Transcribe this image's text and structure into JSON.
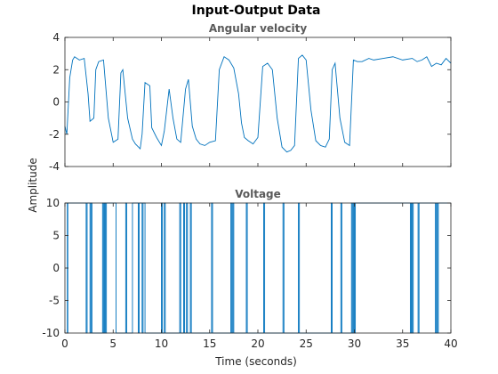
{
  "figure_title": "Input-Output Data",
  "ylabel": "Amplitude",
  "xlabel": "Time (seconds)",
  "chart_data": [
    {
      "type": "line",
      "title": "Angular velocity",
      "color": "#0072bd",
      "xlim": [
        0,
        40
      ],
      "ylim": [
        -4,
        4
      ],
      "xticks": [
        0,
        5,
        10,
        15,
        20,
        25,
        30,
        35,
        40
      ],
      "yticks": [
        -4,
        -2,
        0,
        2,
        4
      ],
      "x": [
        0.0,
        0.2,
        0.5,
        0.8,
        1.0,
        1.5,
        2.0,
        2.4,
        2.6,
        3.0,
        3.2,
        3.5,
        4.0,
        4.5,
        5.0,
        5.5,
        5.8,
        6.0,
        6.5,
        7.0,
        7.3,
        7.8,
        8.0,
        8.3,
        8.8,
        9.0,
        9.5,
        10.0,
        10.3,
        10.8,
        11.2,
        11.6,
        12.0,
        12.5,
        12.8,
        13.2,
        13.6,
        14.0,
        14.5,
        15.0,
        15.6,
        16.0,
        16.5,
        17.0,
        17.5,
        18.0,
        18.3,
        18.6,
        19.0,
        19.5,
        20.0,
        20.5,
        21.0,
        21.5,
        22.0,
        22.5,
        23.0,
        23.4,
        23.8,
        24.2,
        24.6,
        25.0,
        25.5,
        26.0,
        26.5,
        27.0,
        27.4,
        27.7,
        28.0,
        28.5,
        29.0,
        29.5,
        29.9,
        30.3,
        30.8,
        31.5,
        32.0,
        33.0,
        34.0,
        35.0,
        36.0,
        36.5,
        37.0,
        37.5,
        38.0,
        38.5,
        39.0,
        39.5,
        40.0
      ],
      "y": [
        -1.5,
        -2.0,
        1.5,
        2.6,
        2.8,
        2.6,
        2.7,
        0.5,
        -1.2,
        -1.0,
        2.0,
        2.5,
        2.6,
        -1.0,
        -2.5,
        -2.3,
        1.8,
        2.0,
        -1.0,
        -2.3,
        -2.6,
        -2.9,
        -2.0,
        1.2,
        1.0,
        -1.6,
        -2.2,
        -2.7,
        -1.8,
        0.8,
        -1.0,
        -2.3,
        -2.5,
        0.8,
        1.4,
        -1.5,
        -2.3,
        -2.6,
        -2.7,
        -2.5,
        -2.4,
        2.0,
        2.8,
        2.6,
        2.1,
        0.5,
        -1.3,
        -2.2,
        -2.4,
        -2.6,
        -2.2,
        2.2,
        2.4,
        2.0,
        -1.0,
        -2.8,
        -3.1,
        -3.0,
        -2.7,
        2.7,
        2.9,
        2.6,
        -0.5,
        -2.4,
        -2.7,
        -2.8,
        -2.3,
        2.0,
        2.4,
        -1.0,
        -2.5,
        -2.7,
        2.6,
        2.5,
        2.5,
        2.7,
        2.6,
        2.7,
        2.8,
        2.6,
        2.7,
        2.5,
        2.6,
        2.8,
        2.2,
        2.4,
        2.3,
        2.7,
        2.4
      ]
    },
    {
      "type": "line",
      "title": "Voltage",
      "color": "#0072bd",
      "xlim": [
        0,
        40
      ],
      "ylim": [
        -10,
        10
      ],
      "xticks": [
        0,
        5,
        10,
        15,
        20,
        25,
        30,
        35,
        40
      ],
      "xticklabels": [
        "0",
        "5",
        "10",
        "15",
        "20",
        "25",
        "30",
        "35",
        "40"
      ],
      "yticks": [
        -10,
        -5,
        0,
        5,
        10
      ],
      "switch_times": [
        0.25,
        0.3,
        2.2,
        2.3,
        2.6,
        2.7,
        2.8,
        3.9,
        4.0,
        4.1,
        4.2,
        4.3,
        5.3,
        6.3,
        6.4,
        7.0,
        7.6,
        7.7,
        8.0,
        8.1,
        8.3,
        10.0,
        10.1,
        10.3,
        10.4,
        11.9,
        12.0,
        12.3,
        12.4,
        12.6,
        12.7,
        13.0,
        13.1,
        15.2,
        15.3,
        17.2,
        17.3,
        17.4,
        17.5,
        18.8,
        18.9,
        20.6,
        20.7,
        22.6,
        22.7,
        24.2,
        24.3,
        27.6,
        27.7,
        28.6,
        28.7,
        29.7,
        29.8,
        29.9,
        30.0,
        30.1,
        35.8,
        35.9,
        36.0,
        36.1,
        36.6,
        36.7,
        38.4,
        38.5,
        38.6,
        38.7
      ]
    }
  ]
}
